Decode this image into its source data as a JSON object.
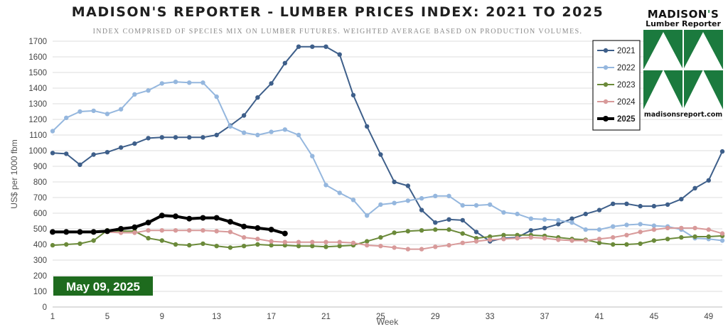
{
  "title": "MADISON'S REPORTER - LUMBER PRICES INDEX: 2021 TO 2025",
  "subtitle": "INDEX COMPRISED OF SPECIES MIX ON LUMBER FUTURES. WEIGHTED AVERAGE BASED ON PRODUCTION VOLUMES.",
  "logo": {
    "name_part1": "MADISON",
    "name_part2": "'",
    "name_part3": "S",
    "line2": "Lumber Reporter",
    "url": "madisonsreport.com"
  },
  "date_badge": "May 09, 2025",
  "colors": {
    "2021": "#3e5f8a",
    "2022": "#95b7de",
    "2023": "#6b8a3a",
    "2024": "#d89a9a",
    "2025": "#000000",
    "badge": "#1e6b1e",
    "logo_green": "#1b7a3e"
  },
  "chart_data": {
    "type": "line",
    "title": "MADISON'S REPORTER - LUMBER PRICES INDEX: 2021 TO 2025",
    "subtitle": "INDEX COMPRISED OF SPECIES MIX ON LUMBER FUTURES. WEIGHTED AVERAGE BASED ON PRODUCTION VOLUMES.",
    "xlabel": "Week",
    "ylabel": "US$ per 1000 fbm",
    "xlim": [
      1,
      50
    ],
    "ylim": [
      0,
      1700
    ],
    "x_ticks": [
      1,
      5,
      9,
      13,
      17,
      21,
      25,
      29,
      33,
      37,
      41,
      45,
      49
    ],
    "y_ticks": [
      0,
      100,
      200,
      300,
      400,
      500,
      600,
      700,
      800,
      900,
      1000,
      1100,
      1200,
      1300,
      1400,
      1500,
      1600,
      1700
    ],
    "grid": true,
    "legend_position": "top-right",
    "series": [
      {
        "name": "2021",
        "color": "#3e5f8a",
        "values": [
          985,
          980,
          910,
          975,
          990,
          1020,
          1045,
          1080,
          1085,
          1085,
          1085,
          1085,
          1100,
          1160,
          1225,
          1340,
          1430,
          1560,
          1665,
          1665,
          1665,
          1615,
          1355,
          1155,
          975,
          800,
          775,
          620,
          540,
          560,
          555,
          480,
          420,
          440,
          445,
          490,
          505,
          530,
          565,
          595,
          620,
          660,
          660,
          645,
          645,
          655,
          690,
          760,
          810,
          995
        ]
      },
      {
        "name": "2022",
        "color": "#95b7de",
        "values": [
          1125,
          1210,
          1250,
          1255,
          1235,
          1265,
          1360,
          1385,
          1430,
          1440,
          1435,
          1435,
          1345,
          1155,
          1115,
          1100,
          1120,
          1135,
          1100,
          965,
          780,
          730,
          685,
          585,
          655,
          665,
          680,
          695,
          710,
          710,
          650,
          650,
          655,
          605,
          595,
          565,
          560,
          555,
          540,
          495,
          495,
          515,
          525,
          530,
          520,
          515,
          495,
          440,
          435,
          425
        ]
      },
      {
        "name": "2023",
        "color": "#6b8a3a",
        "values": [
          395,
          400,
          405,
          425,
          490,
          485,
          485,
          440,
          425,
          400,
          395,
          405,
          390,
          380,
          390,
          400,
          395,
          395,
          390,
          390,
          385,
          390,
          395,
          420,
          445,
          475,
          485,
          490,
          495,
          495,
          470,
          440,
          450,
          460,
          460,
          460,
          455,
          445,
          435,
          430,
          410,
          400,
          400,
          405,
          425,
          435,
          445,
          450,
          450,
          455
        ]
      },
      {
        "name": "2024",
        "color": "#d89a9a",
        "values": [
          480,
          480,
          480,
          480,
          480,
          475,
          475,
          490,
          490,
          490,
          490,
          490,
          485,
          480,
          445,
          435,
          420,
          415,
          415,
          415,
          415,
          415,
          410,
          395,
          390,
          380,
          370,
          370,
          385,
          395,
          410,
          420,
          430,
          435,
          440,
          445,
          440,
          430,
          425,
          425,
          435,
          445,
          460,
          480,
          495,
          505,
          505,
          505,
          495,
          470
        ]
      },
      {
        "name": "2025",
        "color": "#000000",
        "values": [
          480,
          480,
          480,
          480,
          485,
          500,
          510,
          540,
          585,
          580,
          565,
          570,
          570,
          545,
          515,
          505,
          495,
          470
        ]
      }
    ]
  }
}
